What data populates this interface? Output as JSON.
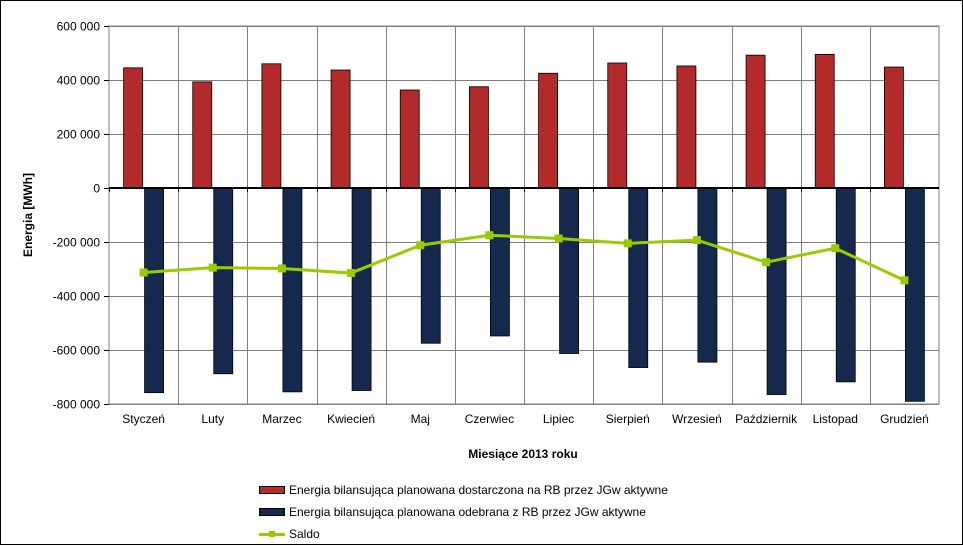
{
  "chart_data": {
    "type": "bar",
    "title": "",
    "xlabel": "Miesiące 2013  roku",
    "ylabel": "Energia [MWh]",
    "ylim": [
      -800000,
      600000
    ],
    "yticks": [
      600000,
      400000,
      200000,
      0,
      -200000,
      -400000,
      -600000,
      -800000
    ],
    "ytick_labels": [
      "600 000",
      "400 000",
      "200 000",
      "0",
      "-200 000",
      "-400 000",
      "-600 000",
      "-800 000"
    ],
    "grid": true,
    "legend_position": "bottom",
    "categories": [
      "Styczeń",
      "Luty",
      "Marzec",
      "Kwiecień",
      "Maj",
      "Czerwiec",
      "Lipiec",
      "Sierpień",
      "Wrzesień",
      "Październik",
      "Listopad",
      "Grudzień"
    ],
    "series": [
      {
        "name": "Energia bilansująca planowana dostarczona na RB przez JGw aktywne",
        "kind": "bar",
        "color": "#b22a2a",
        "values": [
          445000,
          393000,
          460000,
          437000,
          363000,
          375000,
          425000,
          463000,
          452000,
          492000,
          495000,
          448000
        ]
      },
      {
        "name": "Energia bilansująca planowana odebrana z RB przez JGw aktywne",
        "kind": "bar",
        "color": "#15294f",
        "values": [
          -758000,
          -688000,
          -755000,
          -750000,
          -575000,
          -548000,
          -613000,
          -665000,
          -645000,
          -765000,
          -718000,
          -790000
        ]
      },
      {
        "name": "Saldo",
        "kind": "line",
        "color": "#99cc00",
        "values": [
          -313000,
          -295000,
          -298000,
          -315000,
          -212000,
          -175000,
          -187000,
          -205000,
          -193000,
          -275000,
          -223000,
          -342000
        ]
      }
    ]
  }
}
